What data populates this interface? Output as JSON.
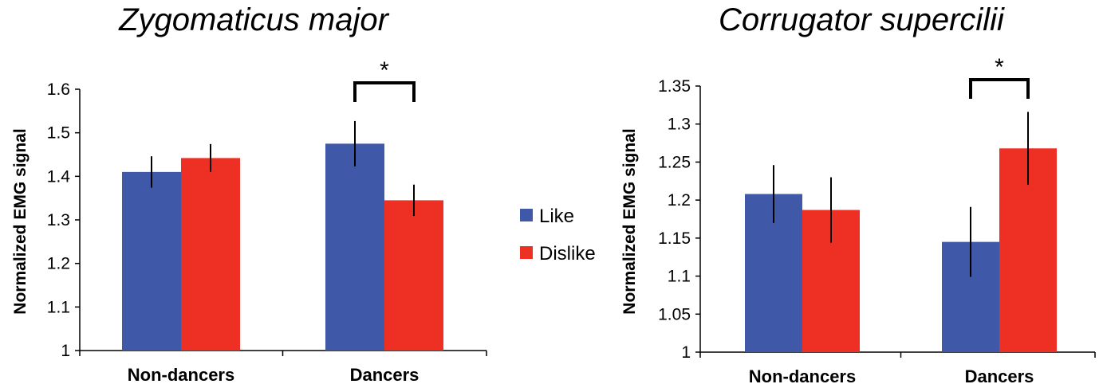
{
  "legend": [
    {
      "label": "Like",
      "color": "#3f59a8"
    },
    {
      "label": "Dislike",
      "color": "#ee3024"
    }
  ],
  "chart_data": [
    {
      "type": "bar",
      "title": "Zygomaticus major",
      "ylabel": "Normalized EMG signal",
      "xlabel": "",
      "categories": [
        "Non-dancers",
        "Dancers"
      ],
      "ylim": [
        1,
        1.6
      ],
      "yticks": [
        "1",
        "1.1",
        "1.2",
        "1.3",
        "1.4",
        "1.5",
        "1.6"
      ],
      "series": [
        {
          "name": "Like",
          "color": "#3f59a8",
          "values": [
            1.41,
            1.475
          ],
          "errors": [
            0.036,
            0.052
          ]
        },
        {
          "name": "Dislike",
          "color": "#ee3024",
          "values": [
            1.442,
            1.345
          ],
          "errors": [
            0.032,
            0.036
          ]
        }
      ],
      "significance": {
        "category": "Dancers",
        "marker": "*"
      }
    },
    {
      "type": "bar",
      "title": "Corrugator supercilii",
      "ylabel": "Normalized EMG signal",
      "xlabel": "",
      "categories": [
        "Non-dancers",
        "Dancers"
      ],
      "ylim": [
        1,
        1.35
      ],
      "yticks": [
        "1",
        "1.05",
        "1.1",
        "1.15",
        "1.2",
        "1.25",
        "1.3",
        "1.35"
      ],
      "series": [
        {
          "name": "Like",
          "color": "#3f59a8",
          "values": [
            1.208,
            1.145
          ],
          "errors": [
            0.038,
            0.046
          ]
        },
        {
          "name": "Dislike",
          "color": "#ee3024",
          "values": [
            1.187,
            1.268
          ],
          "errors": [
            0.043,
            0.048
          ]
        }
      ],
      "significance": {
        "category": "Dancers",
        "marker": "*"
      }
    }
  ]
}
